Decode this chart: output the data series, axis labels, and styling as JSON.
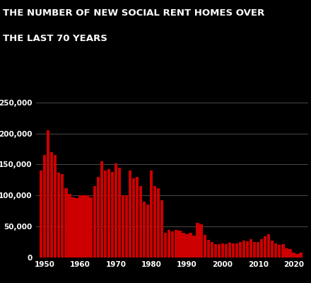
{
  "title_line1": "THE NUMBER OF NEW SOCIAL RENT HOMES OVER",
  "title_line2": "THE LAST 70 YEARS",
  "background_color": "#000000",
  "bar_color": "#cc0000",
  "text_color": "#ffffff",
  "grid_color": "#666666",
  "ylim": [
    0,
    260000
  ],
  "yticks": [
    0,
    50000,
    100000,
    150000,
    200000,
    250000
  ],
  "ytick_labels": [
    "0",
    "50,000",
    "100,000",
    "150,000",
    "200,000",
    "250,000"
  ],
  "xtick_positions": [
    1950,
    1960,
    1970,
    1980,
    1990,
    2000,
    2010,
    2020
  ],
  "xtick_labels": [
    "1950",
    "1960",
    "1970",
    "1980",
    "1990",
    "2000",
    "2010",
    "2020"
  ],
  "years": [
    1949,
    1950,
    1951,
    1952,
    1953,
    1954,
    1955,
    1956,
    1957,
    1958,
    1959,
    1960,
    1961,
    1962,
    1963,
    1964,
    1965,
    1966,
    1967,
    1968,
    1969,
    1970,
    1971,
    1972,
    1973,
    1974,
    1975,
    1976,
    1977,
    1978,
    1979,
    1980,
    1981,
    1982,
    1983,
    1984,
    1985,
    1986,
    1987,
    1988,
    1989,
    1990,
    1991,
    1992,
    1993,
    1994,
    1995,
    1996,
    1997,
    1998,
    1999,
    2000,
    2001,
    2002,
    2003,
    2004,
    2005,
    2006,
    2007,
    2008,
    2009,
    2010,
    2011,
    2012,
    2013,
    2014,
    2015,
    2016,
    2017,
    2018,
    2019,
    2020,
    2021,
    2022
  ],
  "values": [
    140000,
    165000,
    205000,
    170000,
    165000,
    137000,
    135000,
    112000,
    103000,
    97000,
    96000,
    100000,
    100000,
    100000,
    97000,
    115000,
    130000,
    155000,
    140000,
    142000,
    138000,
    152000,
    145000,
    100000,
    100000,
    140000,
    128000,
    130000,
    115000,
    90000,
    85000,
    140000,
    115000,
    112000,
    92000,
    40000,
    44000,
    42000,
    44000,
    43000,
    40000,
    38000,
    40000,
    35000,
    56000,
    54000,
    37000,
    29000,
    25000,
    22000,
    22000,
    23000,
    22000,
    24000,
    23000,
    23000,
    25000,
    27000,
    26000,
    30000,
    25000,
    25000,
    30000,
    34000,
    38000,
    27000,
    23000,
    20000,
    22000,
    15000,
    14000,
    8000,
    6000,
    8000
  ],
  "title_fontsize": 9.5,
  "tick_fontsize": 7.5,
  "xlim_left": 1947.5,
  "xlim_right": 2024
}
